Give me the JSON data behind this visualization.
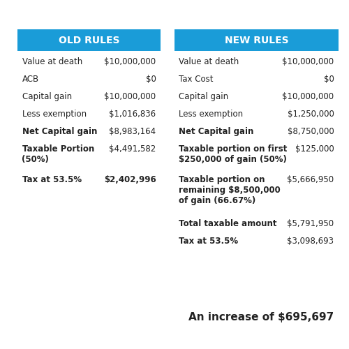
{
  "header_color": "#1a9cd8",
  "header_text_color": "#ffffff",
  "background_color": "#ffffff",
  "text_color": "#222222",
  "old_rules_header": "OLD RULES",
  "new_rules_header": "NEW RULES",
  "old_rules": [
    {
      "label": "Value at death",
      "value": "$10,000,000",
      "bold_label": false,
      "bold_value": false
    },
    {
      "label": "ACB",
      "value": "$0",
      "bold_label": false,
      "bold_value": false
    },
    {
      "label": "Capital gain",
      "value": "$10,000,000",
      "bold_label": false,
      "bold_value": false
    },
    {
      "label": "Less exemption",
      "value": "$1,016,836",
      "bold_label": false,
      "bold_value": false
    },
    {
      "label": "Net Capital gain",
      "value": "$8,983,164",
      "bold_label": true,
      "bold_value": false
    },
    {
      "label": "Taxable Portion\n(50%)",
      "value": "$4,491,582",
      "bold_label": true,
      "bold_value": false
    },
    {
      "label": "Tax at 53.5%",
      "value": "$2,402,996",
      "bold_label": true,
      "bold_value": true
    }
  ],
  "new_rules": [
    {
      "label": "Value at death",
      "value": "$10,000,000",
      "bold_label": false,
      "bold_value": false
    },
    {
      "label": "Tax Cost",
      "value": "$0",
      "bold_label": false,
      "bold_value": false
    },
    {
      "label": "Capital gain",
      "value": "$10,000,000",
      "bold_label": false,
      "bold_value": false
    },
    {
      "label": "Less exemption",
      "value": "$1,250,000",
      "bold_label": false,
      "bold_value": false
    },
    {
      "label": "Net Capital gain",
      "value": "$8,750,000",
      "bold_label": true,
      "bold_value": false
    },
    {
      "label": "Taxable portion on first\n$250,000 of gain (50%)",
      "value": "$125,000",
      "bold_label": true,
      "bold_value": false
    },
    {
      "label": "Taxable portion on\nremaining $8,500,000\nof gain (66.67%)",
      "value": "$5,666,950",
      "bold_label": true,
      "bold_value": false
    },
    {
      "label": "Total taxable amount",
      "value": "$5,791,950",
      "bold_label": true,
      "bold_value": false
    },
    {
      "label": "Tax at 53.5%",
      "value": "$3,098,693",
      "bold_label": true,
      "bold_value": false
    }
  ],
  "footer_text": "An increase of $695,697",
  "figsize": [
    5.0,
    5.0
  ],
  "dpi": 100
}
